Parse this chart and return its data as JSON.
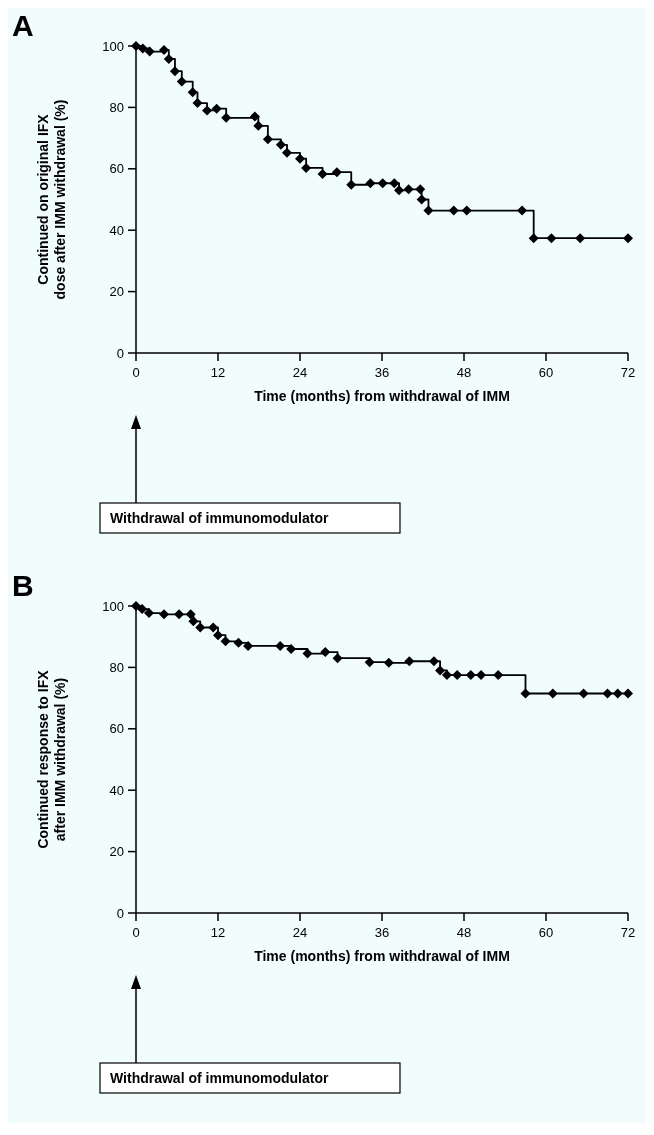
{
  "chart_data": [
    {
      "type": "step",
      "title": "A",
      "xlabel": "Time (months) from withdrawal of IMM",
      "ylabel": "Continued on original IFX\ndose after IMM withdrawal (%)",
      "annotations": [
        "Withdrawal of immunomodulator"
      ],
      "xlim": [
        0,
        72
      ],
      "xticks": [
        0,
        12,
        24,
        36,
        48,
        60,
        72
      ],
      "ylim": [
        0,
        100
      ],
      "yticks": [
        0,
        20,
        40,
        60,
        80,
        100
      ],
      "marker": "diamond",
      "line_style": "solid",
      "grid": false,
      "series": [
        {
          "color": "#000000",
          "x": [
            0,
            1.0,
            2.0,
            4.1,
            4.8,
            5.7,
            6.7,
            8.3,
            9.0,
            10.4,
            11.8,
            13.2,
            17.4,
            17.9,
            19.3,
            21.2,
            22.1,
            24.0,
            24.9,
            27.3,
            29.4,
            31.5,
            34.3,
            36.1,
            37.8,
            38.5,
            39.9,
            41.6,
            41.8,
            42.8,
            46.5,
            48.4,
            56.5,
            58.2,
            60.8,
            65.0,
            72
          ],
          "values": [
            100,
            99.2,
            98.2,
            98.7,
            95.8,
            91.8,
            88.4,
            84.9,
            81.4,
            79,
            79.6,
            76.6,
            77,
            74,
            69.6,
            67.8,
            65.2,
            63.3,
            60.3,
            58.3,
            58.9,
            54.8,
            55.3,
            55.3,
            55.3,
            53,
            53.3,
            53.3,
            50,
            46.4,
            46.4,
            46.4,
            46.4,
            37.4,
            37.4,
            37.4,
            37.4
          ]
        }
      ]
    },
    {
      "type": "step",
      "title": "B",
      "xlabel": "Time (months) from withdrawal of IMM",
      "ylabel": "Continued response to IFX\nafter IMM withdrawal (%)",
      "annotations": [
        "Withdrawal of immunomodulator"
      ],
      "xlim": [
        0,
        72
      ],
      "xticks": [
        0,
        12,
        24,
        36,
        48,
        60,
        72
      ],
      "ylim": [
        0,
        100
      ],
      "yticks": [
        0,
        20,
        40,
        60,
        80,
        100
      ],
      "marker": "diamond",
      "line_style": "solid",
      "grid": false,
      "series": [
        {
          "color": "#000000",
          "x": [
            0,
            0.9,
            1.9,
            4.1,
            6.3,
            8.0,
            8.4,
            9.4,
            11.3,
            12.0,
            13.1,
            15.0,
            16.4,
            21.1,
            22.7,
            25.1,
            27.7,
            29.5,
            34.2,
            37.0,
            40.0,
            43.6,
            44.5,
            45.5,
            47,
            49,
            50.5,
            53,
            57,
            61,
            65.5,
            69,
            70.5,
            72
          ],
          "values": [
            100,
            99,
            97.7,
            97.3,
            97.3,
            97.3,
            95,
            93,
            93,
            90.5,
            88.5,
            88,
            87,
            87,
            86,
            84.5,
            85,
            83,
            81.7,
            81.5,
            82,
            82,
            79,
            77.5,
            77.5,
            77.5,
            77.5,
            77.5,
            71.5,
            71.5,
            71.5,
            71.5,
            71.5,
            71.5
          ]
        }
      ]
    }
  ]
}
